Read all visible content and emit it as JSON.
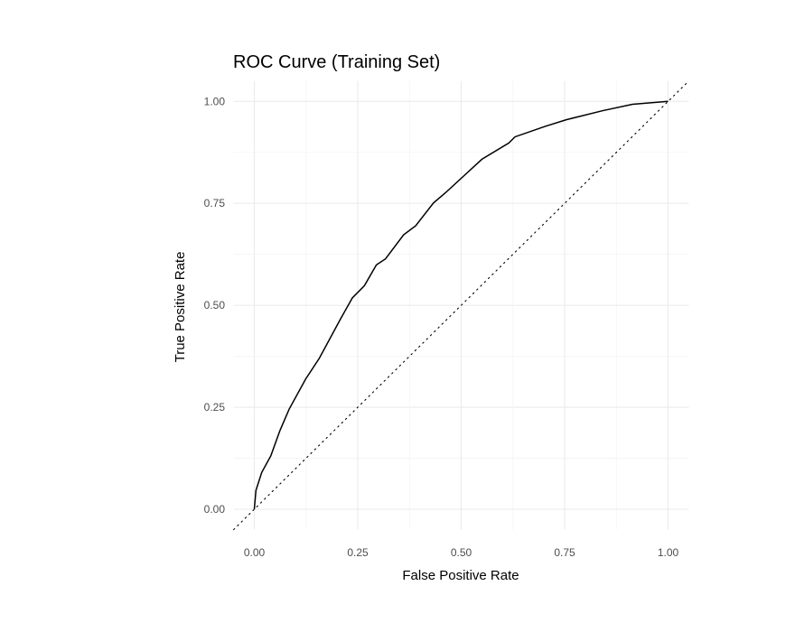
{
  "chart_data": {
    "type": "line",
    "title": "ROC Curve (Training Set)",
    "xlabel": "False Positive Rate",
    "ylabel": "True Positive Rate",
    "xlim": [
      0,
      1
    ],
    "ylim": [
      0,
      1
    ],
    "x_ticks": [
      "0.00",
      "0.25",
      "0.50",
      "0.75",
      "1.00"
    ],
    "y_ticks": [
      "0.00",
      "0.25",
      "0.50",
      "0.75",
      "1.00"
    ],
    "grid": true,
    "reference_line": {
      "style": "dotted",
      "slope": 1,
      "intercept": 0
    },
    "series": [
      {
        "color": "#000000",
        "x": [
          0,
          0.004,
          0.018,
          0.04,
          0.062,
          0.084,
          0.124,
          0.157,
          0.208,
          0.237,
          0.266,
          0.295,
          0.317,
          0.361,
          0.39,
          0.433,
          0.462,
          0.506,
          0.55,
          0.615,
          0.63,
          0.703,
          0.754,
          0.841,
          0.914,
          0.987,
          1
        ],
        "y": [
          0,
          0.046,
          0.09,
          0.131,
          0.193,
          0.245,
          0.319,
          0.37,
          0.466,
          0.518,
          0.548,
          0.599,
          0.614,
          0.673,
          0.695,
          0.751,
          0.776,
          0.817,
          0.858,
          0.898,
          0.913,
          0.939,
          0.955,
          0.977,
          0.993,
          0.999,
          1
        ]
      }
    ]
  }
}
